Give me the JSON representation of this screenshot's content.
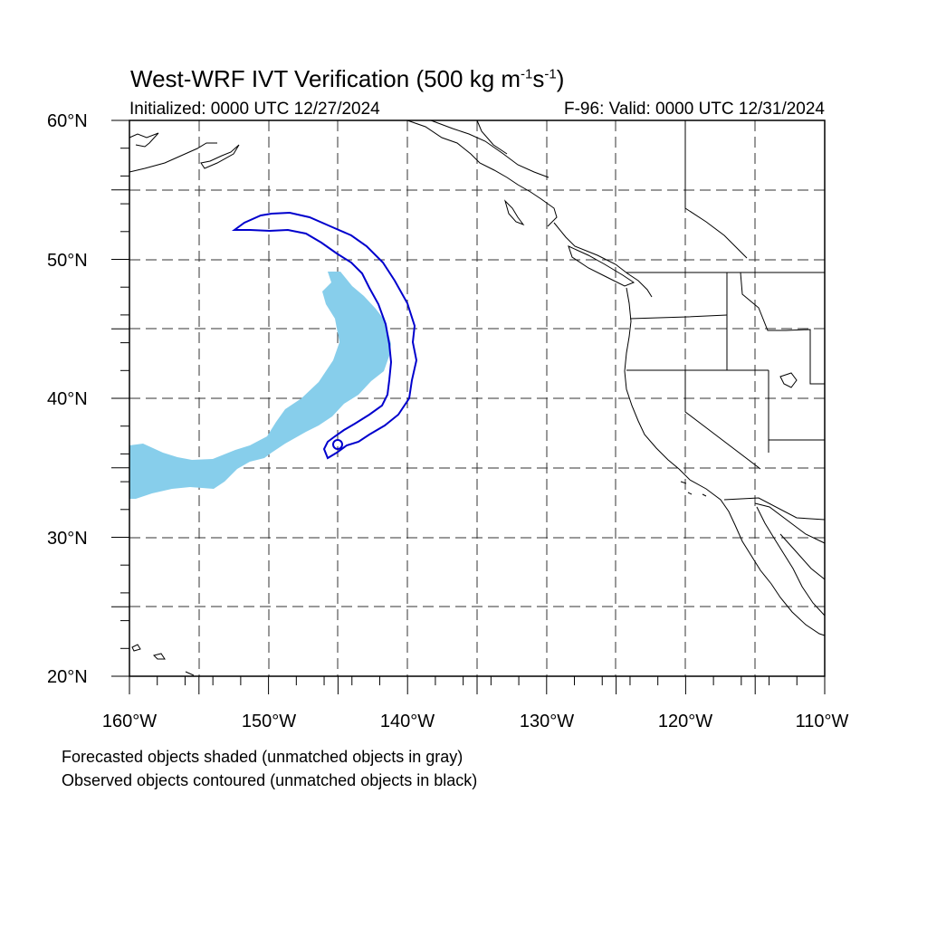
{
  "title": {
    "main": "West-WRF IVT Verification (500 kg m",
    "sup1": "-1",
    "mid": "s",
    "sup2": "-1",
    "end": ")"
  },
  "initialized": "Initialized: 0000 UTC 12/27/2024",
  "valid": "F-96: Valid: 0000 UTC 12/31/2024",
  "lat_labels": [
    "60°N",
    "50°N",
    "40°N",
    "30°N",
    "20°N"
  ],
  "lon_labels": [
    "160°W",
    "150°W",
    "140°W",
    "130°W",
    "120°W",
    "110°W"
  ],
  "footnotes": [
    "Forecasted objects shaded (unmatched objects in gray)",
    "Observed objects contoured (unmatched objects in black)"
  ],
  "colors": {
    "forecast_fill": "#87ceeb",
    "observed_contour": "#0000cd",
    "coast": "#000000",
    "grid": "#333333"
  },
  "map_extent": {
    "lon": [
      -160,
      -110
    ],
    "lat": [
      20,
      60
    ]
  }
}
